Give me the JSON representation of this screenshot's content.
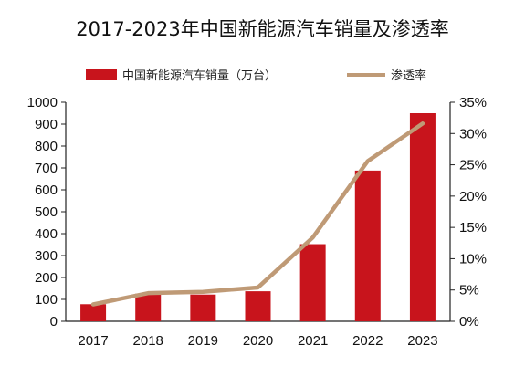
{
  "chart_data": {
    "type": "bar",
    "title": "2017-2023年中国新能源汽车销量及渗透率",
    "categories": [
      "2017",
      "2018",
      "2019",
      "2020",
      "2021",
      "2022",
      "2023"
    ],
    "series": [
      {
        "name": "中国新能源汽车销量（万台）",
        "type": "bar",
        "axis": "left",
        "values": [
          78,
          126,
          122,
          137,
          352,
          688,
          950
        ],
        "color": "#c8141c"
      },
      {
        "name": "渗透率",
        "type": "line",
        "axis": "right",
        "values": [
          2.7,
          4.5,
          4.7,
          5.4,
          13.4,
          25.6,
          31.6
        ],
        "color": "#bf9a76"
      }
    ],
    "y_left": {
      "ylim": [
        0,
        1000
      ],
      "ticks": [
        "0",
        "100",
        "200",
        "300",
        "400",
        "500",
        "600",
        "700",
        "800",
        "900",
        "1000"
      ]
    },
    "y_right": {
      "ylim": [
        0,
        35
      ],
      "ticks": [
        "0%",
        "5%",
        "10%",
        "15%",
        "20%",
        "25%",
        "30%",
        "35%"
      ]
    },
    "legend_position": "top",
    "grid": false
  }
}
